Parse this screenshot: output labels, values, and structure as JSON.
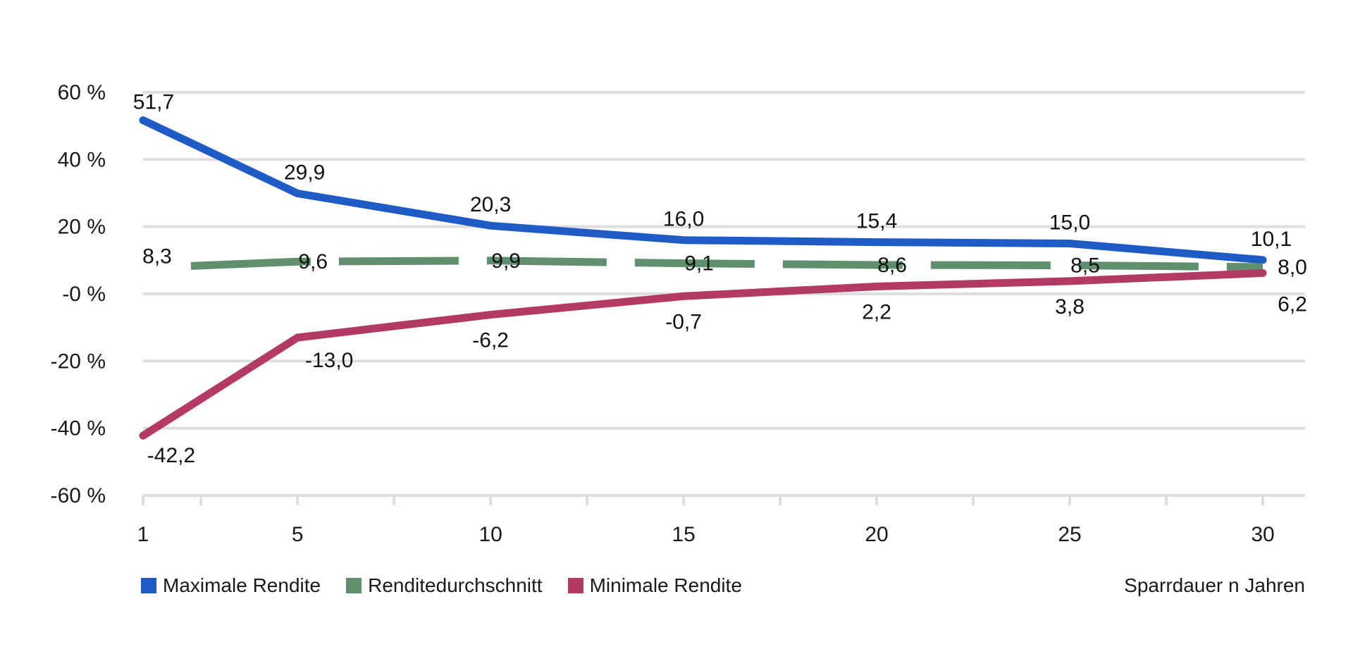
{
  "chart_data": {
    "type": "line",
    "x": [
      1,
      5,
      10,
      15,
      20,
      25,
      30
    ],
    "x_ticks": [
      "1",
      "5",
      "10",
      "15",
      "20",
      "25",
      "30"
    ],
    "y_ticks": [
      "60 %",
      "40 %",
      "20 %",
      "-0 %",
      "-20 %",
      "-40 %",
      "-60 %"
    ],
    "ylim": [
      -60,
      60
    ],
    "grid": true,
    "xlabel": "Sparrdauer n Jahren",
    "legend_position": "bottom-left",
    "series": [
      {
        "name": "Maximale Rendite",
        "color": "#1f5bc4",
        "style": "solid",
        "values": [
          51.7,
          29.9,
          20.3,
          16.0,
          15.4,
          15.0,
          10.1
        ],
        "labels": [
          "51,7",
          "29,9",
          "20,3",
          "16,0",
          "15,4",
          "15,0",
          "10,1"
        ]
      },
      {
        "name": "Renditedurchschnitt",
        "color": "#5f8f6c",
        "style": "dashed",
        "values": [
          8.3,
          9.6,
          9.9,
          9.1,
          8.6,
          8.5,
          8.0
        ],
        "labels": [
          "8,3",
          "9,6",
          "9,9",
          "9,1",
          "8,6",
          "8,5",
          "8,0"
        ]
      },
      {
        "name": "Minimale Rendite",
        "color": "#b33a64",
        "style": "solid",
        "values": [
          -42.2,
          -13.0,
          -6.2,
          -0.7,
          2.2,
          3.8,
          6.2
        ],
        "labels": [
          "-42,2",
          "-13,0",
          "-6,2",
          "-0,7",
          "2,2",
          "3,8",
          "6,2"
        ]
      }
    ]
  }
}
